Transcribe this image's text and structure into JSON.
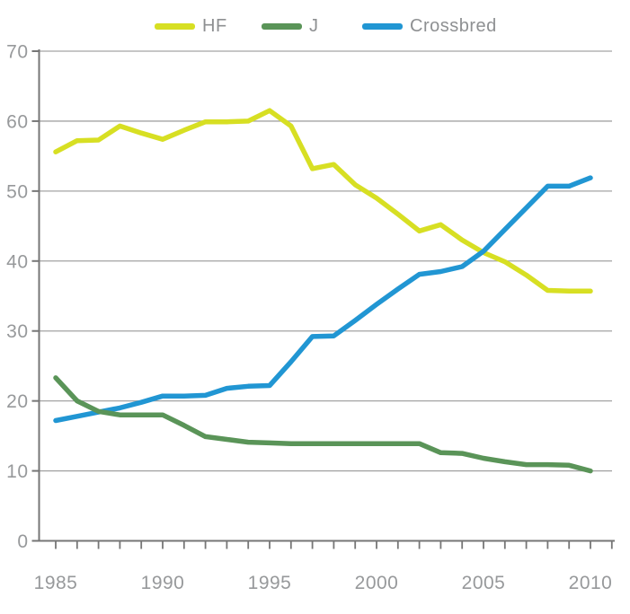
{
  "title": "",
  "legend": {
    "items": [
      {
        "label": "HF",
        "color": "#d7df23"
      },
      {
        "label": "J",
        "color": "#5a9458"
      },
      {
        "label": "Crossbred",
        "color": "#2196d3"
      }
    ]
  },
  "chart_data": {
    "type": "line",
    "x": [
      1985,
      1986,
      1987,
      1988,
      1989,
      1990,
      1991,
      1992,
      1993,
      1994,
      1995,
      1996,
      1997,
      1998,
      1999,
      2000,
      2001,
      2002,
      2003,
      2004,
      2005,
      2006,
      2007,
      2008,
      2009,
      2010
    ],
    "series": [
      {
        "name": "HF",
        "color": "#d7df23",
        "values": [
          55.6,
          57.2,
          57.3,
          59.3,
          58.3,
          57.4,
          58.7,
          59.9,
          59.9,
          60.0,
          61.5,
          59.3,
          53.2,
          53.8,
          50.9,
          49.0,
          46.7,
          44.3,
          45.2,
          43.0,
          41.2,
          39.9,
          38.0,
          35.8,
          35.7,
          35.7
        ]
      },
      {
        "name": "Crossbred",
        "color": "#2196d3",
        "values": [
          17.2,
          17.8,
          18.4,
          19.0,
          19.8,
          20.7,
          20.7,
          20.8,
          21.8,
          22.1,
          22.2,
          25.6,
          29.2,
          29.3,
          31.5,
          33.8,
          36.0,
          38.1,
          38.5,
          39.2,
          41.4,
          44.5,
          47.6,
          50.7,
          50.7,
          51.9
        ]
      },
      {
        "name": "J",
        "color": "#5a9458",
        "values": [
          23.3,
          20.0,
          18.5,
          18.0,
          18.0,
          18.0,
          16.5,
          14.9,
          14.5,
          14.1,
          14.0,
          13.9,
          13.9,
          13.9,
          13.9,
          13.9,
          13.9,
          13.9,
          12.6,
          12.5,
          11.8,
          11.3,
          10.9,
          10.9,
          10.8,
          10.0
        ]
      }
    ],
    "ylim": [
      0,
      70
    ],
    "xlim": [
      1985,
      2010
    ],
    "y_ticks": [
      0,
      10,
      20,
      30,
      40,
      50,
      60,
      70
    ],
    "x_tick_labels": [
      "1985",
      "1990",
      "1995",
      "2000",
      "2005",
      "2010"
    ],
    "x_tick_label_years": [
      1985,
      1990,
      1995,
      2000,
      2005,
      2010
    ],
    "xlabel": "",
    "ylabel": "",
    "grid": "horizontal",
    "legend_position": "top"
  },
  "colors": {
    "background": "#ffffff",
    "gridline": "#a3a3a3",
    "axis": "#767676",
    "tick": "#767676",
    "tick_label": "#97999b",
    "legend_text": "#8e9092"
  }
}
